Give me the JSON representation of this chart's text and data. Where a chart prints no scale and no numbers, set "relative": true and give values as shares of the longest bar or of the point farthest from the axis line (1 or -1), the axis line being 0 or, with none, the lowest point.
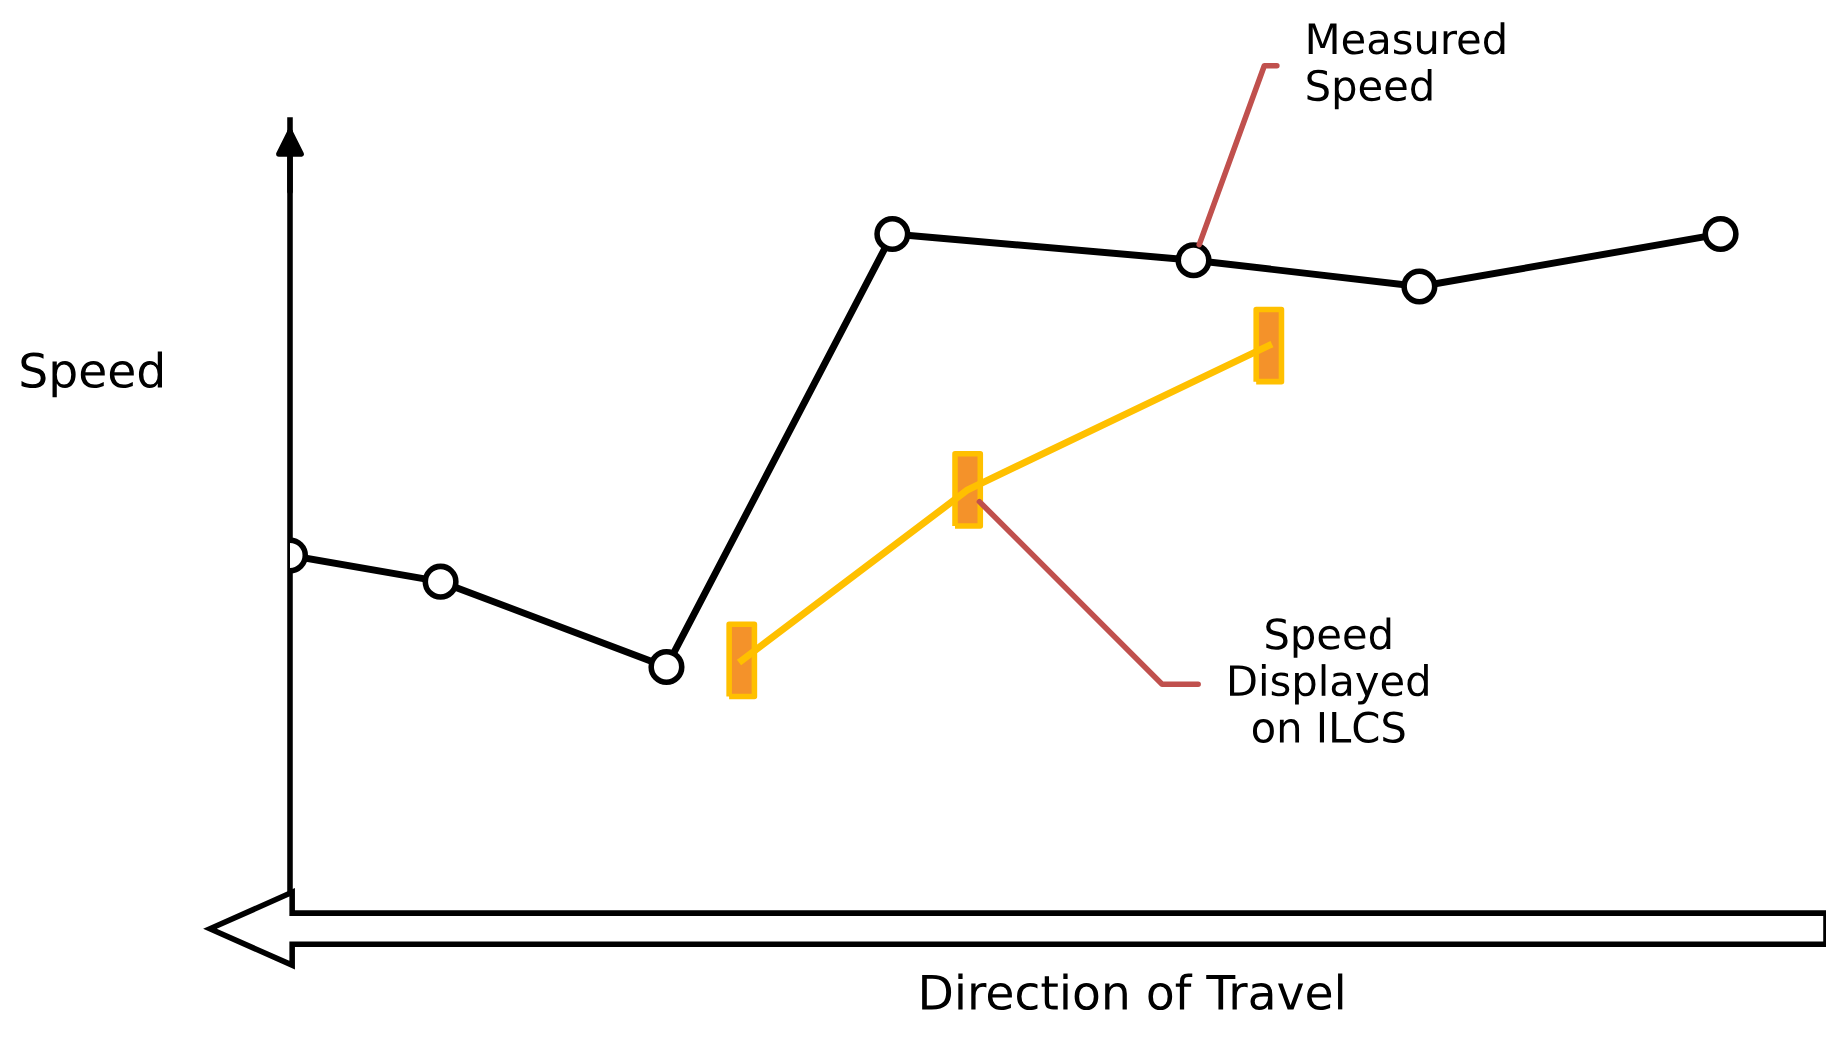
{
  "chart_data": {
    "type": "line",
    "relative": true,
    "xlabel": "Direction of Travel",
    "ylabel": "Speed",
    "line_style": "solid",
    "categories": [
      null,
      null,
      null,
      null,
      null,
      null,
      null,
      null,
      null,
      null,
      null,
      null,
      null,
      null,
      null,
      null,
      null,
      null,
      null,
      null,
      null
    ],
    "series": [
      {
        "values": [
          0.51,
          null,
          0.47,
          null,
          null,
          0.34,
          null,
          null,
          1,
          null,
          null,
          null,
          0.96,
          null,
          null,
          0.92,
          null,
          null,
          null,
          1,
          null
        ],
        "color": "#000000",
        "marker": "circle"
      },
      {
        "values": [
          null,
          null,
          null,
          null,
          null,
          null,
          0.35,
          null,
          null,
          0.61,
          null,
          null,
          null,
          0.83,
          null,
          null,
          null,
          null,
          null,
          null,
          null
        ],
        "color": "#ffc000",
        "marker": "square"
      }
    ],
    "annotations": [
      "Measured\nSpeed",
      "Speed\nDisplayed\non ILCS"
    ]
  }
}
